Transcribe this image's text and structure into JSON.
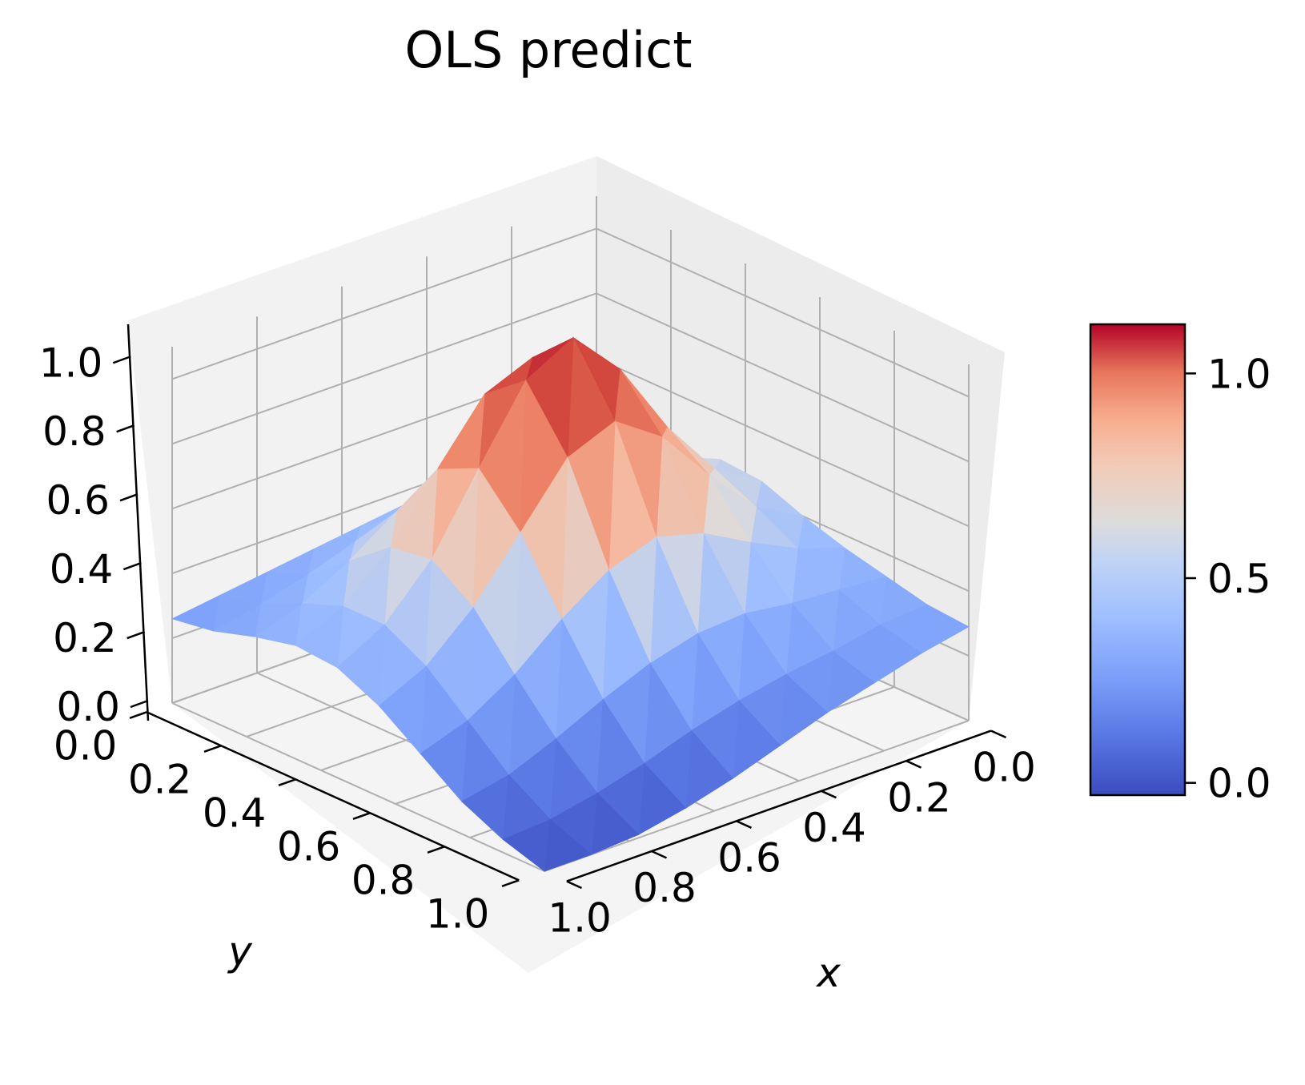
{
  "chart_data": {
    "type": "surface3d",
    "title": "OLS predict",
    "xlabel": "x",
    "ylabel": "y",
    "zlabel": "",
    "xlim": [
      0,
      1
    ],
    "ylim": [
      0,
      1
    ],
    "zlim": [
      0,
      1.1
    ],
    "x_ticks": [
      "0.0",
      "0.2",
      "0.4",
      "0.6",
      "0.8",
      "1.0"
    ],
    "y_ticks": [
      "0.0",
      "0.2",
      "0.4",
      "0.6",
      "0.8",
      "1.0"
    ],
    "z_ticks": [
      "0.0",
      "0.2",
      "0.4",
      "0.6",
      "0.8",
      "1.0"
    ],
    "colormap": "coolwarm",
    "colorbar": {
      "ticks": [
        "0.0",
        "0.5",
        "1.0"
      ],
      "vmin": -0.03,
      "vmax": 1.12
    },
    "grid": true,
    "x": [
      0.0,
      0.111,
      0.222,
      0.333,
      0.444,
      0.556,
      0.667,
      0.778,
      0.889,
      1.0
    ],
    "y": [
      0.0,
      0.111,
      0.222,
      0.333,
      0.444,
      0.556,
      0.667,
      0.778,
      0.889,
      1.0
    ],
    "z": [
      [
        0.31,
        0.36,
        0.41,
        0.46,
        0.45,
        0.4,
        0.36,
        0.33,
        0.3,
        0.29
      ],
      [
        0.33,
        0.39,
        0.45,
        0.52,
        0.54,
        0.48,
        0.41,
        0.34,
        0.29,
        0.26
      ],
      [
        0.35,
        0.42,
        0.54,
        0.68,
        0.72,
        0.63,
        0.48,
        0.35,
        0.26,
        0.22
      ],
      [
        0.36,
        0.44,
        0.62,
        0.86,
        0.95,
        0.8,
        0.56,
        0.37,
        0.24,
        0.18
      ],
      [
        0.36,
        0.45,
        0.66,
        0.98,
        1.1,
        0.9,
        0.6,
        0.36,
        0.21,
        0.13
      ],
      [
        0.34,
        0.43,
        0.63,
        0.92,
        1.02,
        0.84,
        0.55,
        0.32,
        0.17,
        0.08
      ],
      [
        0.32,
        0.4,
        0.55,
        0.74,
        0.8,
        0.66,
        0.45,
        0.26,
        0.12,
        0.04
      ],
      [
        0.3,
        0.35,
        0.45,
        0.55,
        0.57,
        0.48,
        0.33,
        0.19,
        0.08,
        0.01
      ],
      [
        0.28,
        0.31,
        0.37,
        0.42,
        0.42,
        0.35,
        0.24,
        0.13,
        0.05,
        0.0
      ],
      [
        0.26,
        0.28,
        0.32,
        0.35,
        0.34,
        0.28,
        0.19,
        0.1,
        0.04,
        0.0
      ]
    ],
    "colors": {
      "low": "#3b4cc0",
      "mid": "#dddcdc",
      "high": "#b40426"
    }
  }
}
